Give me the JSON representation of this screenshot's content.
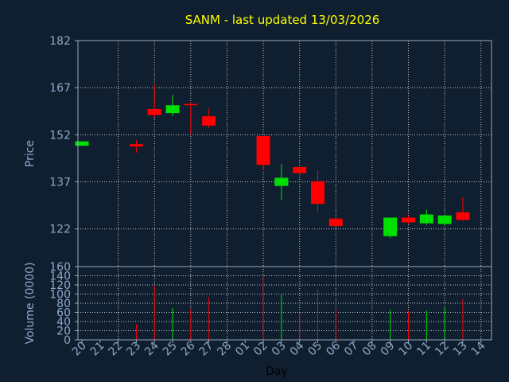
{
  "title": "SANM - last updated 13/03/2026",
  "colors": {
    "background": "#0f1f30",
    "title": "#ffff00",
    "axis_text": "#8fa8c8",
    "up": "#00e000",
    "down": "#ff0000",
    "grid": "#c8c8c8"
  },
  "chart_data": [
    {
      "type": "candlestick",
      "ylabel": "Price",
      "yticks": [
        182,
        167,
        152,
        137,
        122
      ],
      "ylim": [
        110,
        182
      ],
      "grid": true,
      "days": [
        "20",
        "21",
        "22",
        "23",
        "24",
        "25",
        "26",
        "27",
        "28",
        "01",
        "02",
        "03",
        "04",
        "05",
        "06",
        "07",
        "08",
        "09",
        "10",
        "11",
        "12",
        "13",
        "14"
      ],
      "candles": [
        {
          "day": "20",
          "open": 148.5,
          "high": 149.9,
          "low": 148.4,
          "close": 149.9
        },
        {
          "day": "23",
          "open": 149.0,
          "high": 150.3,
          "low": 146.3,
          "close": 148.3
        },
        {
          "day": "24",
          "open": 160.2,
          "high": 168.2,
          "low": 157.7,
          "close": 158.3
        },
        {
          "day": "25",
          "open": 158.9,
          "high": 164.7,
          "low": 158.0,
          "close": 161.4
        },
        {
          "day": "26",
          "open": 161.8,
          "high": 162.4,
          "low": 152.1,
          "close": 161.6
        },
        {
          "day": "27",
          "open": 157.9,
          "high": 160.3,
          "low": 154.1,
          "close": 154.9
        },
        {
          "day": "02",
          "open": 151.6,
          "high": 151.6,
          "low": 140.5,
          "close": 142.4
        },
        {
          "day": "03",
          "open": 135.7,
          "high": 142.7,
          "low": 131.2,
          "close": 138.3
        },
        {
          "day": "04",
          "open": 141.7,
          "high": 142.1,
          "low": 139.0,
          "close": 139.8
        },
        {
          "day": "05",
          "open": 137.2,
          "high": 140.7,
          "low": 127.3,
          "close": 130.0
        },
        {
          "day": "06",
          "open": 125.3,
          "high": 125.3,
          "low": 122.7,
          "close": 122.9
        },
        {
          "day": "09",
          "open": 119.7,
          "high": 125.6,
          "low": 119.1,
          "close": 125.6
        },
        {
          "day": "10",
          "open": 125.6,
          "high": 126.3,
          "low": 123.6,
          "close": 124.1
        },
        {
          "day": "11",
          "open": 123.8,
          "high": 128.2,
          "low": 123.3,
          "close": 126.6
        },
        {
          "day": "12",
          "open": 123.6,
          "high": 126.3,
          "low": 123.1,
          "close": 126.3
        },
        {
          "day": "13",
          "open": 127.3,
          "high": 132.1,
          "low": 124.5,
          "close": 124.9
        }
      ]
    },
    {
      "type": "bar",
      "ylabel": "Volume (0000)",
      "xlabel": "Day",
      "yticks": [
        0,
        20,
        40,
        60,
        80,
        100,
        120,
        140,
        160
      ],
      "ylim": [
        0,
        160
      ],
      "grid": true,
      "categories": [
        "20",
        "21",
        "22",
        "23",
        "24",
        "25",
        "26",
        "27",
        "28",
        "01",
        "02",
        "03",
        "04",
        "05",
        "06",
        "07",
        "08",
        "09",
        "10",
        "11",
        "12",
        "13",
        "14"
      ],
      "values": [
        {
          "day": "23",
          "value": 34,
          "direction": "down"
        },
        {
          "day": "24",
          "value": 118,
          "direction": "down"
        },
        {
          "day": "25",
          "value": 70,
          "direction": "up"
        },
        {
          "day": "26",
          "value": 67,
          "direction": "down"
        },
        {
          "day": "27",
          "value": 93,
          "direction": "down"
        },
        {
          "day": "02",
          "value": 142,
          "direction": "down"
        },
        {
          "day": "03",
          "value": 99,
          "direction": "up"
        },
        {
          "day": "04",
          "value": 60,
          "direction": "down"
        },
        {
          "day": "05",
          "value": 110,
          "direction": "down"
        },
        {
          "day": "06",
          "value": 66,
          "direction": "down"
        },
        {
          "day": "09",
          "value": 66,
          "direction": "up"
        },
        {
          "day": "10",
          "value": 63,
          "direction": "down"
        },
        {
          "day": "11",
          "value": 64,
          "direction": "up"
        },
        {
          "day": "12",
          "value": 71,
          "direction": "up"
        },
        {
          "day": "13",
          "value": 89,
          "direction": "down"
        }
      ]
    }
  ]
}
